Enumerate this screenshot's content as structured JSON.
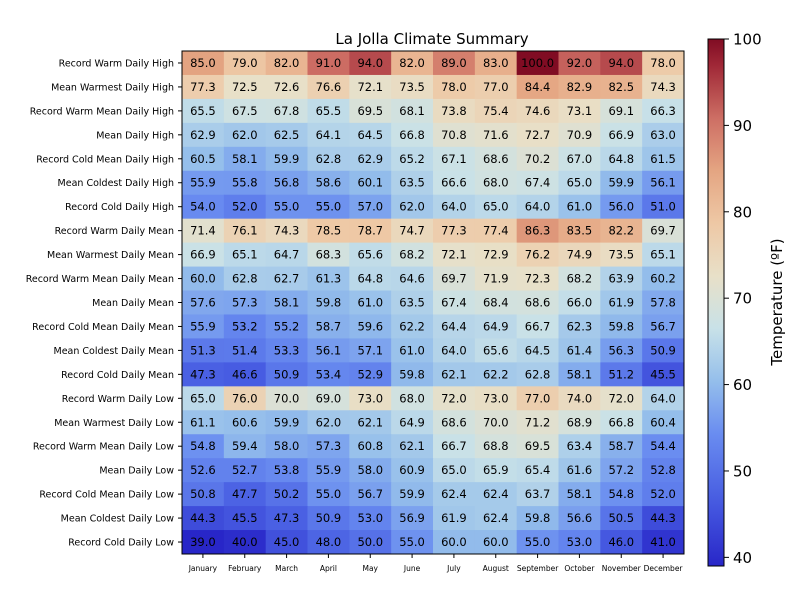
{
  "chart_data": {
    "type": "heatmap",
    "title": "La Jolla Climate Summary",
    "colorbar": {
      "label": "Temperature (ºF)",
      "range": [
        39.0,
        100.0
      ],
      "ticks": [
        40,
        50,
        60,
        70,
        80,
        90,
        100
      ],
      "colormap": "coolwarm"
    },
    "columns": [
      "January",
      "February",
      "March",
      "April",
      "May",
      "June",
      "July",
      "August",
      "September",
      "October",
      "November",
      "December"
    ],
    "rows": [
      "Record Warm Daily High",
      "Mean Warmest Daily High",
      "Record Warm Mean Daily High",
      "Mean Daily High",
      "Record Cold Mean Daily High",
      "Mean Coldest Daily High",
      "Record Cold Daily High",
      "Record Warm Daily Mean",
      "Mean Warmest Daily Mean",
      "Record Warm Mean Daily Mean",
      "Mean Daily Mean",
      "Record Cold Mean Daily Mean",
      "Mean Coldest Daily Mean",
      "Record Cold Daily Mean",
      "Record Warm Daily Low",
      "Mean Warmest Daily Low",
      "Record Warm Mean Daily Low",
      "Mean Daily Low",
      "Record Cold Mean Daily Low",
      "Mean Coldest Daily Low",
      "Record Cold Daily Low"
    ],
    "values": [
      [
        85.0,
        79.0,
        82.0,
        91.0,
        94.0,
        82.0,
        89.0,
        83.0,
        100.0,
        92.0,
        94.0,
        78.0
      ],
      [
        77.3,
        72.5,
        72.6,
        76.6,
        72.1,
        73.5,
        78.0,
        77.0,
        84.4,
        82.9,
        82.5,
        74.3
      ],
      [
        65.5,
        67.5,
        67.8,
        65.5,
        69.5,
        68.1,
        73.8,
        75.4,
        74.6,
        73.1,
        69.1,
        66.3
      ],
      [
        62.9,
        62.0,
        62.5,
        64.1,
        64.5,
        66.8,
        70.8,
        71.6,
        72.7,
        70.9,
        66.9,
        63.0
      ],
      [
        60.5,
        58.1,
        59.9,
        62.8,
        62.9,
        65.2,
        67.1,
        68.6,
        70.2,
        67.0,
        64.8,
        61.5
      ],
      [
        55.9,
        55.8,
        56.8,
        58.6,
        60.1,
        63.5,
        66.6,
        68.0,
        67.4,
        65.0,
        59.9,
        56.1
      ],
      [
        54.0,
        52.0,
        55.0,
        55.0,
        57.0,
        62.0,
        64.0,
        65.0,
        64.0,
        61.0,
        56.0,
        51.0
      ],
      [
        71.4,
        76.1,
        74.3,
        78.5,
        78.7,
        74.7,
        77.3,
        77.4,
        86.3,
        83.5,
        82.2,
        69.7
      ],
      [
        66.9,
        65.1,
        64.7,
        68.3,
        65.6,
        68.2,
        72.1,
        72.9,
        76.2,
        74.9,
        73.5,
        65.1
      ],
      [
        60.0,
        62.8,
        62.7,
        61.3,
        64.8,
        64.6,
        69.7,
        71.9,
        72.3,
        68.2,
        63.9,
        60.2
      ],
      [
        57.6,
        57.3,
        58.1,
        59.8,
        61.0,
        63.5,
        67.4,
        68.4,
        68.6,
        66.0,
        61.9,
        57.8
      ],
      [
        55.9,
        53.2,
        55.2,
        58.7,
        59.6,
        62.2,
        64.4,
        64.9,
        66.7,
        62.3,
        59.8,
        56.7
      ],
      [
        51.3,
        51.4,
        53.3,
        56.1,
        57.1,
        61.0,
        64.0,
        65.6,
        64.5,
        61.4,
        56.3,
        50.9
      ],
      [
        47.3,
        46.6,
        50.9,
        53.4,
        52.9,
        59.8,
        62.1,
        62.2,
        62.8,
        58.1,
        51.2,
        45.5
      ],
      [
        65.0,
        76.0,
        70.0,
        69.0,
        73.0,
        68.0,
        72.0,
        73.0,
        77.0,
        74.0,
        72.0,
        64.0
      ],
      [
        61.1,
        60.6,
        59.9,
        62.0,
        62.1,
        64.9,
        68.6,
        70.0,
        71.2,
        68.9,
        66.8,
        60.4
      ],
      [
        54.8,
        59.4,
        58.0,
        57.3,
        60.8,
        62.1,
        66.7,
        68.8,
        69.5,
        63.4,
        58.7,
        54.4
      ],
      [
        52.6,
        52.7,
        53.8,
        55.9,
        58.0,
        60.9,
        65.0,
        65.9,
        65.4,
        61.6,
        57.2,
        52.8
      ],
      [
        50.8,
        47.7,
        50.2,
        55.0,
        56.7,
        59.9,
        62.4,
        62.4,
        63.7,
        58.1,
        54.8,
        52.0
      ],
      [
        44.3,
        45.5,
        47.3,
        50.9,
        53.0,
        56.9,
        61.9,
        62.4,
        59.8,
        56.6,
        50.5,
        44.3
      ],
      [
        39.0,
        40.0,
        45.0,
        48.0,
        50.0,
        55.0,
        60.0,
        60.0,
        55.0,
        53.0,
        46.0,
        41.0
      ]
    ]
  }
}
